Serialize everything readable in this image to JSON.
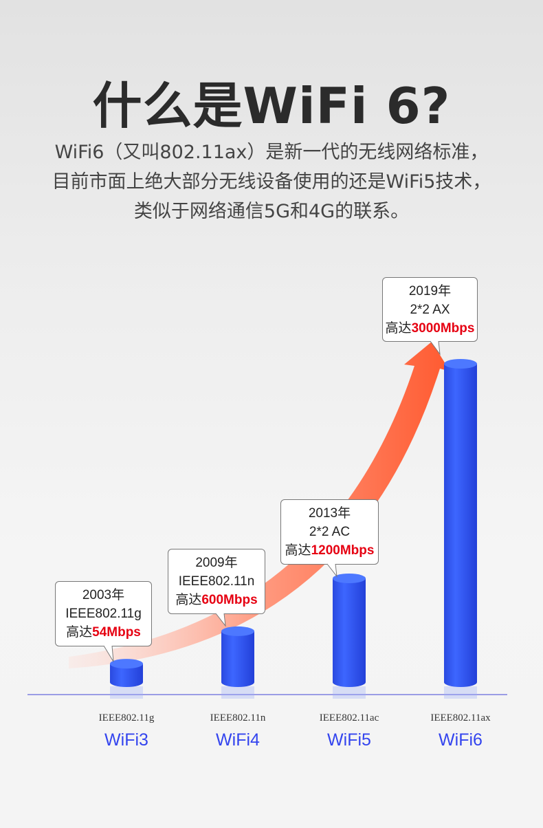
{
  "title": "什么是WiFi 6?",
  "description": [
    "WiFi6（又叫802.11ax）是新一代的无线网络标准，",
    "目前市面上绝大部分无线设备使用的还是WiFi5技术，",
    "类似于网络通信5G和4G的联系。"
  ],
  "chart_data": {
    "type": "bar",
    "categories": [
      "WiFi3",
      "WiFi4",
      "WiFi5",
      "WiFi6"
    ],
    "standards": [
      "IEEE802.11g",
      "IEEE802.11n",
      "IEEE802.11ac",
      "IEEE802.11ax"
    ],
    "values": [
      54,
      600,
      1200,
      3000
    ],
    "unit": "Mbps",
    "callouts": [
      {
        "year": "2003年",
        "line2": "IEEE802.11g",
        "prefix": "高达",
        "speed": "54Mbps"
      },
      {
        "year": "2009年",
        "line2": "IEEE802.11n",
        "prefix": "高达",
        "speed": "600Mbps"
      },
      {
        "year": "2013年",
        "line2": "2*2 AC",
        "prefix": "高达",
        "speed": "1200Mbps"
      },
      {
        "year": "2019年",
        "line2": "2*2 AX",
        "prefix": "高达",
        "speed": "3000Mbps"
      }
    ],
    "colors": {
      "bar": "#2f55f0",
      "arrow": "#ff5a30",
      "highlight": "#e60012",
      "label": "#3344ee"
    }
  }
}
